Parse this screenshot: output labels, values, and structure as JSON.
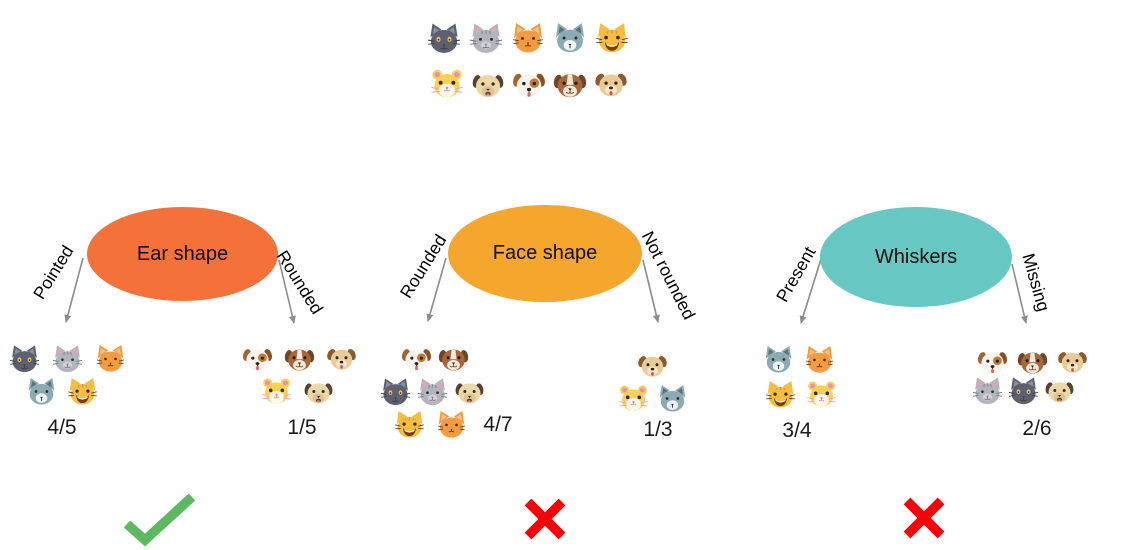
{
  "dataset": {
    "rows": [
      [
        "cat-dark",
        "cat-gray",
        "cat-orange",
        "wolf",
        "cat-grin"
      ],
      [
        "hamster",
        "dog-pug",
        "dog-white",
        "dog-boxer",
        "dog-tan"
      ]
    ]
  },
  "features": [
    {
      "label": "Ear shape",
      "color": "#f4713a",
      "left": {
        "label": "Pointed",
        "fraction": "4/5",
        "rows": [
          [
            "cat-dark",
            "cat-gray",
            "cat-orange"
          ],
          [
            "wolf",
            "cat-grin"
          ]
        ]
      },
      "right": {
        "label": "Rounded",
        "fraction": "1/5",
        "rows": [
          [
            "dog-white",
            "dog-boxer",
            "dog-tan"
          ],
          [
            "hamster",
            "dog-pug"
          ]
        ]
      },
      "verdict": "correct"
    },
    {
      "label": "Face shape",
      "color": "#f5a62c",
      "left": {
        "label": "Rounded",
        "fraction": "4/7",
        "rows": [
          [
            "dog-white",
            "dog-boxer"
          ],
          [
            "cat-dark",
            "cat-gray",
            "dog-pug"
          ],
          [
            "cat-grin",
            "cat-orange"
          ]
        ]
      },
      "right": {
        "label": "Not rounded",
        "fraction": "1/3",
        "rows": [
          [
            "dog-tan"
          ],
          [
            "hamster",
            "wolf"
          ]
        ]
      },
      "verdict": "incorrect"
    },
    {
      "label": "Whiskers",
      "color": "#67c8c3",
      "left": {
        "label": "Present",
        "fraction": "3/4",
        "rows": [
          [
            "wolf",
            "cat-orange"
          ],
          [
            "cat-grin",
            "hamster"
          ]
        ]
      },
      "right": {
        "label": "Missing",
        "fraction": "2/6",
        "rows": [
          [
            "dog-white",
            "dog-boxer",
            "dog-tan"
          ],
          [
            "cat-gray",
            "cat-dark",
            "dog-pug"
          ]
        ]
      },
      "verdict": "incorrect"
    }
  ],
  "marks": {
    "check_color": "#5bb95f",
    "cross_color": "#fb0007"
  },
  "arrows": {
    "color": "#8c8c8c"
  }
}
